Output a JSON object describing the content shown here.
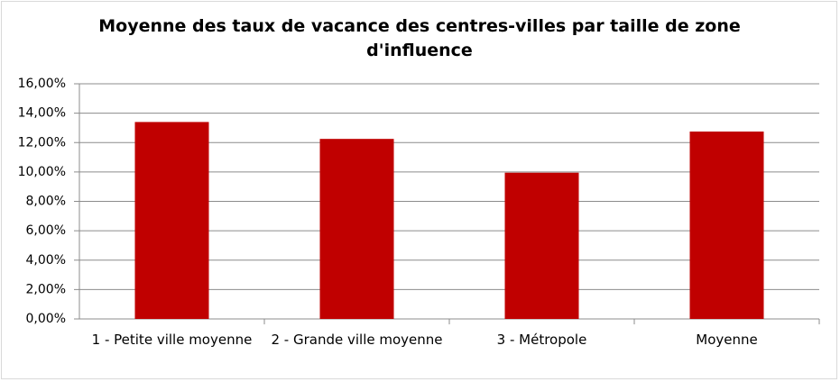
{
  "chart_data": {
    "type": "bar",
    "title": "Moyenne des taux de vacance des centres-villes par taille de zone d'influence",
    "categories": [
      "1 - Petite ville moyenne",
      "2 - Grande ville moyenne",
      "3 - Métropole",
      "Moyenne"
    ],
    "values": [
      13.4,
      12.25,
      9.95,
      12.75
    ],
    "color": "#c00000",
    "ylim": [
      0,
      16
    ],
    "yticks": [
      {
        "value": 0,
        "label": "0,00%"
      },
      {
        "value": 2,
        "label": "2,00%"
      },
      {
        "value": 4,
        "label": "4,00%"
      },
      {
        "value": 6,
        "label": "6,00%"
      },
      {
        "value": 8,
        "label": "8,00%"
      },
      {
        "value": 10,
        "label": "10,00%"
      },
      {
        "value": 12,
        "label": "12,00%"
      },
      {
        "value": 14,
        "label": "14,00%"
      },
      {
        "value": 16,
        "label": "16,00%"
      }
    ],
    "grid": true
  }
}
